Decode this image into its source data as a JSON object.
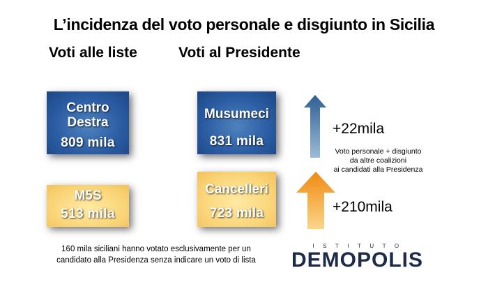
{
  "title": "L’incidenza del voto personale e disgiunto in Sicilia",
  "lists_heading": "Voti alle liste",
  "president_heading": "Voti al Presidente",
  "boxes": {
    "centrodestra": {
      "name_line1": "Centro",
      "name_line2": "Destra",
      "value": "809 mila"
    },
    "musumeci": {
      "name": "Musumeci",
      "value": "831 mila"
    },
    "m5s": {
      "name": "M5S",
      "value": "513 mila"
    },
    "cancelleri": {
      "name": "Cancelleri",
      "value": "723 mila"
    }
  },
  "deltas": {
    "musumeci": "+22mila",
    "cancelleri": "+210mila"
  },
  "note": {
    "line1": "Voto personale + disgiunto",
    "line2": "da altre coalizioni",
    "line3": "ai candidati alla Presidenza"
  },
  "footer": {
    "line1": "160 mila siciliani hanno votato esclusivamente per un",
    "line2": "candidato alla Presidenza senza indicare un voto di lista"
  },
  "logo": {
    "small": "ISTITUTO",
    "big": "DEMOPOLIS"
  },
  "colors": {
    "blue_box": "#2c5ea4",
    "yellow_box": "#fad67a",
    "arrow_blue": "#3a6d9e",
    "arrow_orange": "#f39c1f",
    "logo": "#1e2a4a"
  },
  "icons": {
    "arrow_blue": "up-arrow-icon",
    "arrow_orange": "up-arrow-icon"
  }
}
